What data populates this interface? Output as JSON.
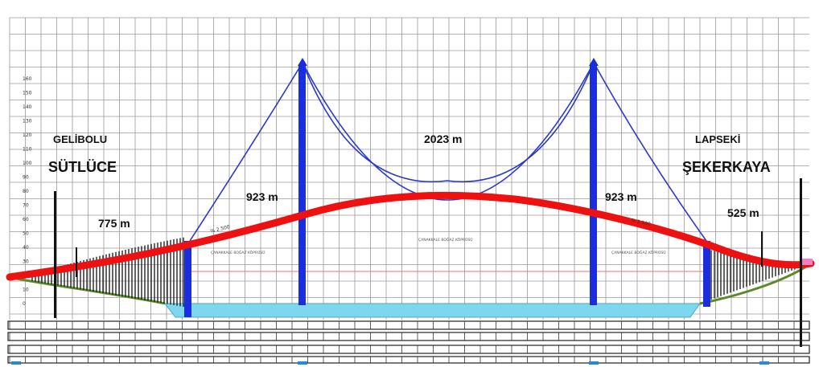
{
  "places": {
    "left_region": "GELİBOLU",
    "left_town": "SÜTLÜCE",
    "right_region": "LAPSEKİ",
    "right_town": "ŞEKERKAYA"
  },
  "spans": {
    "left_approach": "775 m",
    "left_side": "923 m",
    "main": "2023 m",
    "right_side": "923 m",
    "right_approach": "525 m"
  },
  "grades": {
    "left": "% 2.500",
    "right": "% 2.500"
  },
  "small_notes": {
    "left_deck": "ÇANAKKALE BOĞAZ KÖPRÜSÜ",
    "center_deck": "ÇANAKKALE BOĞAZ KÖPRÜSÜ",
    "right_deck": "ÇANAKKALE BOĞAZ KÖPRÜSÜ"
  },
  "elevation_axis": [
    "0",
    "10",
    "20",
    "30",
    "40",
    "50",
    "60",
    "70",
    "80",
    "90",
    "100",
    "110",
    "120",
    "130",
    "140",
    "150",
    "160"
  ],
  "colors": {
    "deck": "#ee1111",
    "towers": "#1a2ee0",
    "cables": "#2a3ac8",
    "water": "#7fd6ef",
    "ground": "#5a8a2a",
    "grid": "#9a9a9a"
  }
}
